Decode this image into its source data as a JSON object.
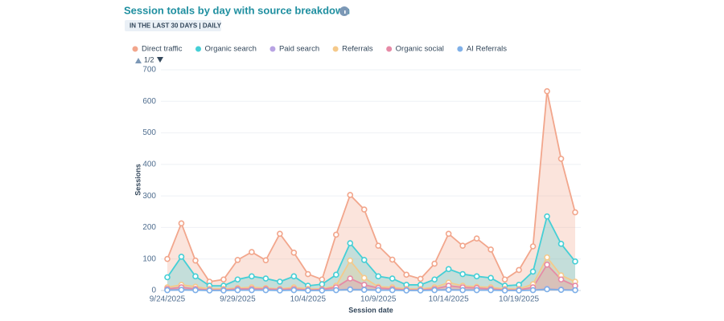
{
  "chart_data": {
    "type": "area",
    "title": "Session totals by day with source breakdown",
    "subtitle": "IN THE LAST 30 DAYS | DAILY",
    "legend_page": "1/2",
    "x_label": "Session date",
    "y_label": "Sessions",
    "categories": [
      "9/24/2025",
      null,
      null,
      null,
      null,
      "9/29/2025",
      null,
      null,
      null,
      null,
      "10/4/2025",
      null,
      null,
      null,
      null,
      "10/9/2025",
      null,
      null,
      null,
      null,
      "10/14/2025",
      null,
      null,
      null,
      null,
      "10/19/2025",
      null,
      null,
      null,
      null
    ],
    "ylim": [
      0,
      700
    ],
    "yticks": [
      0,
      100,
      200,
      300,
      400,
      500,
      600,
      700
    ],
    "grid": true,
    "series": [
      {
        "name": "Direct traffic",
        "color": "#f2a68c",
        "values": [
          100,
          213,
          95,
          28,
          35,
          97,
          122,
          96,
          180,
          120,
          52,
          35,
          177,
          303,
          257,
          142,
          98,
          50,
          37,
          85,
          180,
          142,
          165,
          130,
          35,
          65,
          140,
          632,
          418,
          248
        ]
      },
      {
        "name": "Organic search",
        "color": "#45cfd6",
        "values": [
          42,
          107,
          45,
          15,
          15,
          35,
          45,
          38,
          28,
          45,
          15,
          20,
          50,
          150,
          97,
          45,
          38,
          18,
          18,
          35,
          68,
          52,
          45,
          40,
          15,
          18,
          60,
          235,
          148,
          92
        ]
      },
      {
        "name": "Paid search",
        "color": "#b8a3e3",
        "values": [
          2,
          3,
          2,
          1,
          1,
          2,
          2,
          2,
          1,
          2,
          1,
          1,
          2,
          4,
          3,
          2,
          2,
          1,
          1,
          2,
          3,
          2,
          2,
          2,
          1,
          1,
          2,
          5,
          3,
          2
        ]
      },
      {
        "name": "Referrals",
        "color": "#f5c98a",
        "values": [
          10,
          18,
          12,
          5,
          5,
          8,
          10,
          8,
          5,
          10,
          5,
          5,
          15,
          95,
          40,
          12,
          10,
          5,
          5,
          10,
          25,
          15,
          12,
          10,
          5,
          5,
          20,
          105,
          48,
          28
        ]
      },
      {
        "name": "Organic social",
        "color": "#e68aa6",
        "values": [
          5,
          10,
          5,
          2,
          2,
          5,
          5,
          5,
          3,
          5,
          2,
          3,
          10,
          38,
          18,
          8,
          5,
          2,
          2,
          5,
          15,
          10,
          8,
          5,
          2,
          2,
          10,
          82,
          35,
          15
        ]
      },
      {
        "name": "AI Referrals",
        "color": "#7fb0e8",
        "values": [
          1,
          2,
          1,
          0,
          0,
          1,
          1,
          1,
          0,
          1,
          0,
          0,
          1,
          3,
          2,
          1,
          1,
          0,
          0,
          1,
          2,
          1,
          1,
          1,
          0,
          0,
          1,
          4,
          2,
          1
        ]
      }
    ]
  }
}
